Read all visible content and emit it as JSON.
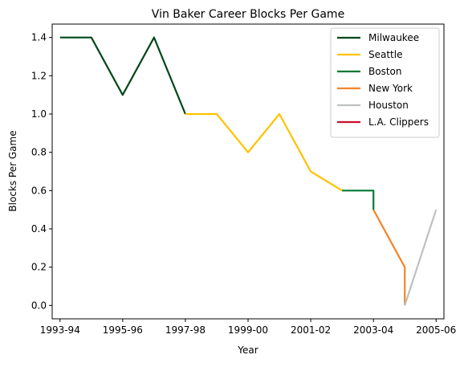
{
  "chart_data": {
    "type": "line",
    "title": "Vin Baker Career Blocks Per Game",
    "xlabel": "Year",
    "ylabel": "Blocks Per Game",
    "grid": false,
    "legend_position": "top-right",
    "xlim": [
      -0.25,
      12.25
    ],
    "ylim": [
      -0.07,
      1.47
    ],
    "x_ticks": [
      {
        "value": 0,
        "label": "1993-94"
      },
      {
        "value": 2,
        "label": "1995-96"
      },
      {
        "value": 4,
        "label": "1997-98"
      },
      {
        "value": 6,
        "label": "1999-00"
      },
      {
        "value": 8,
        "label": "2001-02"
      },
      {
        "value": 10,
        "label": "2003-04"
      },
      {
        "value": 12,
        "label": "2005-06"
      }
    ],
    "y_ticks": [
      {
        "value": 0.0,
        "label": "0.0"
      },
      {
        "value": 0.2,
        "label": "0.2"
      },
      {
        "value": 0.4,
        "label": "0.4"
      },
      {
        "value": 0.6,
        "label": "0.6"
      },
      {
        "value": 0.8,
        "label": "0.8"
      },
      {
        "value": 1.0,
        "label": "1.0"
      },
      {
        "value": 1.2,
        "label": "1.2"
      },
      {
        "value": 1.4,
        "label": "1.4"
      }
    ],
    "series": [
      {
        "name": "Milwaukee",
        "color": "#00471B",
        "points": [
          [
            0,
            1.4
          ],
          [
            1,
            1.4
          ],
          [
            2,
            1.1
          ],
          [
            3,
            1.4
          ],
          [
            4,
            1.0
          ]
        ]
      },
      {
        "name": "Seattle",
        "color": "#FFC200",
        "points": [
          [
            4,
            1.0
          ],
          [
            5,
            1.0
          ],
          [
            6,
            0.8
          ],
          [
            7,
            1.0
          ],
          [
            8,
            0.7
          ],
          [
            9,
            0.6
          ]
        ]
      },
      {
        "name": "Boston",
        "color": "#007A33",
        "points": [
          [
            9,
            0.6
          ],
          [
            10,
            0.6
          ],
          [
            10,
            0.5
          ]
        ]
      },
      {
        "name": "New York",
        "color": "#F58426",
        "points": [
          [
            10,
            0.5
          ],
          [
            11,
            0.2
          ],
          [
            11,
            0.0
          ]
        ]
      },
      {
        "name": "Houston",
        "color": "#BEC0C2",
        "points": [
          [
            11,
            0.0
          ],
          [
            12,
            0.5
          ]
        ]
      },
      {
        "name": "L.A. Clippers",
        "color": "#C8102E",
        "points": []
      }
    ]
  }
}
